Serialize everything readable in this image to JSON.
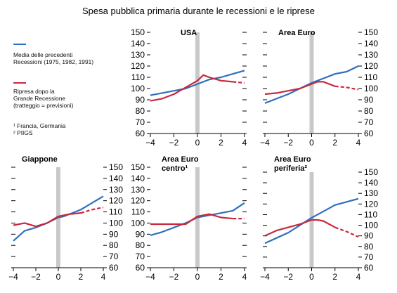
{
  "title": "Spesa pubblica primaria durante le recessioni e le riprese",
  "legend": {
    "blue_label_1": "Media delle precedenti",
    "blue_label_2": "Recessioni  (1975,  1982,  1991)",
    "red_label_1": "Ripresa dopo la",
    "red_label_2": "Grande Recessione",
    "red_label_3": "(tratteggio = previsioni)",
    "note_1": "¹ Francia, Germania",
    "note_2": "² PIIGS"
  },
  "colors": {
    "blue": "#2f6fbf",
    "red": "#c8283c",
    "shade": "#c9c9c9",
    "axis": "#000000"
  },
  "chart_data": [
    {
      "type": "line",
      "title": "USA",
      "x": [
        -4,
        -3,
        -2,
        -1,
        0,
        0.5,
        1,
        2,
        3,
        4
      ],
      "xticks": [
        -4,
        -2,
        0,
        2,
        4
      ],
      "yticks": [
        60,
        70,
        80,
        90,
        100,
        110,
        120,
        130,
        140,
        150
      ],
      "ylim": [
        60,
        150
      ],
      "xlim": [
        -4,
        4
      ],
      "tick_side": "left",
      "series": [
        {
          "color": "blue",
          "values": [
            94,
            96,
            98,
            100,
            104,
            106,
            108,
            110,
            113,
            116
          ]
        },
        {
          "color": "red",
          "values": [
            89,
            91,
            95,
            101,
            107,
            112,
            110,
            107,
            106,
            105
          ],
          "forecast_from_index": 8
        }
      ]
    },
    {
      "type": "line",
      "title": "Area Euro",
      "x": [
        -4,
        -3,
        -2,
        -1,
        0,
        0.5,
        1,
        2,
        3,
        4
      ],
      "xticks": [
        -4,
        -2,
        0,
        2,
        4
      ],
      "yticks": [
        60,
        70,
        80,
        90,
        100,
        110,
        120,
        130,
        140,
        150
      ],
      "ylim": [
        60,
        150
      ],
      "xlim": [
        -4,
        4
      ],
      "tick_side": "right",
      "series": [
        {
          "color": "blue",
          "values": [
            87,
            91,
            95,
            100,
            105,
            107,
            109,
            113,
            115,
            120
          ]
        },
        {
          "color": "red",
          "values": [
            95,
            96,
            98,
            100,
            104,
            106,
            106,
            102,
            101,
            99
          ],
          "forecast_from_index": 7
        }
      ]
    },
    {
      "type": "line",
      "title": "Giappone",
      "x": [
        -4,
        -3,
        -2,
        -1,
        0,
        0.5,
        1,
        2,
        3,
        4
      ],
      "xticks": [
        -4,
        -2,
        0,
        2,
        4
      ],
      "yticks": [
        60,
        70,
        80,
        90,
        100,
        110,
        120,
        130,
        140,
        150
      ],
      "ylim": [
        60,
        150
      ],
      "xlim": [
        -4,
        4
      ],
      "tick_side": "right",
      "series": [
        {
          "color": "blue",
          "values": [
            84,
            93,
            96,
            100,
            105,
            106,
            108,
            112,
            118,
            124
          ]
        },
        {
          "color": "red",
          "values": [
            98,
            100,
            97,
            100,
            106,
            107,
            108,
            109,
            112,
            114
          ],
          "forecast_from_index": 7
        }
      ]
    },
    {
      "type": "line",
      "title": "Area Euro",
      "title_line2": "centro¹",
      "x": [
        -4,
        -3,
        -2,
        -1,
        0,
        0.5,
        1,
        2,
        3,
        4
      ],
      "xticks": [
        -4,
        -2,
        0,
        2,
        4
      ],
      "yticks": [
        60,
        70,
        80,
        90,
        100,
        110,
        120,
        130,
        140,
        150
      ],
      "ylim": [
        60,
        150
      ],
      "xlim": [
        -4,
        4
      ],
      "tick_side": "left",
      "series": [
        {
          "color": "blue",
          "values": [
            89,
            92,
            96,
            100,
            105,
            106,
            107,
            109,
            111,
            118
          ]
        },
        {
          "color": "red",
          "values": [
            99,
            99,
            99,
            99,
            106,
            107,
            108,
            105,
            104,
            104
          ],
          "forecast_from_index": 8
        }
      ]
    },
    {
      "type": "line",
      "title": "Area Euro",
      "title_line2": "periferia²",
      "x": [
        -4,
        -3,
        -2,
        -1,
        0,
        0.5,
        1,
        2,
        3,
        4
      ],
      "xticks": [
        -4,
        -2,
        0,
        2,
        4
      ],
      "yticks": [
        60,
        70,
        80,
        90,
        100,
        110,
        120,
        130,
        140,
        150
      ],
      "ylim": [
        60,
        150
      ],
      "xlim": [
        -4,
        4
      ],
      "tick_side": "right",
      "series": [
        {
          "color": "blue",
          "values": [
            83,
            88,
            93,
            100,
            107,
            110,
            113,
            119,
            122,
            125
          ]
        },
        {
          "color": "red",
          "values": [
            90,
            95,
            98,
            101,
            105,
            105,
            104,
            98,
            94,
            89
          ],
          "forecast_from_index": 7
        }
      ]
    }
  ]
}
